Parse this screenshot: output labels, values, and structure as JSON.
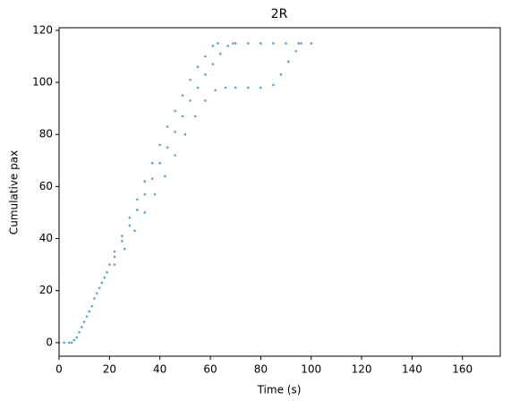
{
  "chart_data": {
    "type": "scatter",
    "title": "2R",
    "x_label": "Time (s)",
    "y_label": "Cumulative pax",
    "color": "#1f77b4",
    "x": [
      0,
      2,
      4,
      5,
      6,
      7,
      8,
      9,
      10,
      11,
      12,
      13,
      14,
      15,
      16,
      17,
      18,
      19,
      20,
      22,
      25,
      28,
      31,
      34,
      37,
      40,
      43,
      46,
      49,
      52,
      55,
      58,
      61,
      63,
      22,
      25,
      28,
      31,
      34,
      37,
      40,
      43,
      46,
      49,
      52,
      55,
      58,
      61,
      64,
      67,
      69,
      22,
      26,
      30,
      34,
      38,
      42,
      46,
      50,
      54,
      58,
      62,
      66,
      70,
      75,
      80,
      85,
      88,
      91,
      94,
      96,
      70,
      75,
      80,
      85,
      90,
      95,
      100
    ],
    "values": [
      0,
      0,
      0,
      0,
      1,
      2,
      4,
      6,
      8,
      10,
      12,
      14,
      17,
      19,
      21,
      23,
      25,
      27,
      30,
      35,
      41,
      48,
      55,
      62,
      69,
      76,
      83,
      89,
      95,
      101,
      106,
      110,
      114,
      115,
      33,
      39,
      45,
      51,
      57,
      63,
      69,
      75,
      81,
      87,
      93,
      98,
      103,
      107,
      111,
      114,
      115,
      30,
      36,
      43,
      50,
      57,
      64,
      72,
      80,
      87,
      93,
      97,
      98,
      98,
      98,
      98,
      99,
      103,
      108,
      112,
      115,
      115,
      115,
      115,
      115,
      115,
      115,
      115
    ],
    "xlim": [
      0,
      175
    ],
    "xticks": [
      0,
      20,
      40,
      60,
      80,
      100,
      120,
      140,
      160
    ],
    "ylim": [
      -5.2,
      121
    ],
    "yticks": [
      0,
      20,
      40,
      60,
      80,
      100,
      120
    ]
  }
}
